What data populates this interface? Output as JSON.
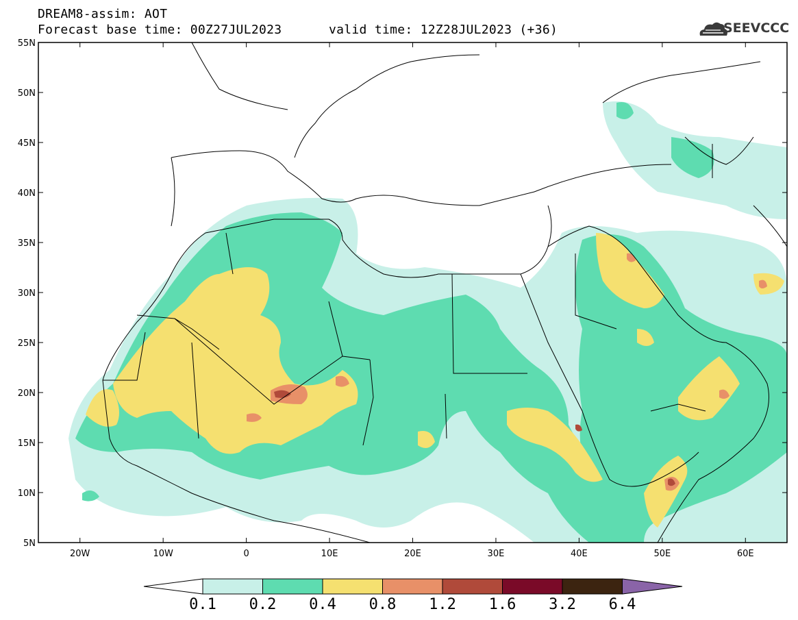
{
  "header": {
    "line1": "DREAM8-assim: AOT",
    "line2": "Forecast base time: 00Z27JUL2023",
    "valid": "valid time: 12Z28JUL2023 (+36)",
    "logo": "SEEVCCC"
  },
  "axes": {
    "lat_labels": [
      "55N",
      "50N",
      "45N",
      "40N",
      "35N",
      "30N",
      "25N",
      "20N",
      "15N",
      "10N",
      "5N"
    ],
    "lat_values": [
      55,
      50,
      45,
      40,
      35,
      30,
      25,
      20,
      15,
      10,
      5
    ],
    "lon_labels": [
      "20W",
      "10W",
      "0",
      "10E",
      "20E",
      "30E",
      "40E",
      "50E",
      "60E"
    ],
    "lon_values": [
      -20,
      -10,
      0,
      10,
      20,
      30,
      40,
      50,
      60
    ],
    "lat_range": [
      5,
      55
    ],
    "lon_range": [
      -25,
      65
    ]
  },
  "colorbar": {
    "thresholds": [
      "0.1",
      "0.2",
      "0.4",
      "0.8",
      "1.2",
      "1.6",
      "3.2",
      "6.4"
    ],
    "colors": [
      "#c8f0e8",
      "#5edcb0",
      "#f5e070",
      "#e89068",
      "#b04a3a",
      "#7a0a28",
      "#3c2410",
      "#8a64a8"
    ],
    "underflow_color": "#ffffff"
  },
  "colors": {
    "land_outline": "#000000",
    "background": "#ffffff"
  }
}
